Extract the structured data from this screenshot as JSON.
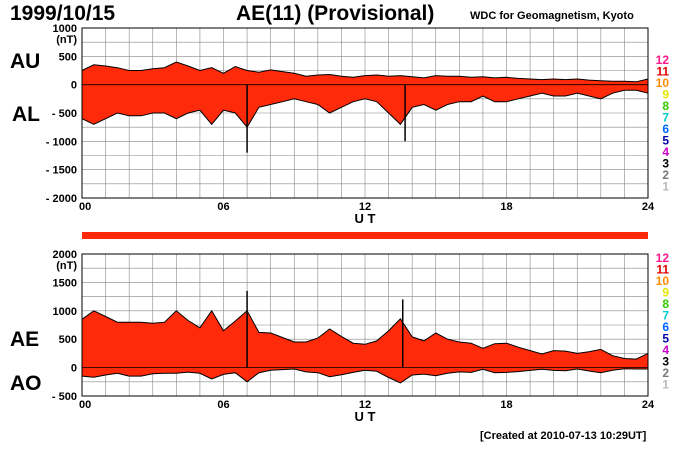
{
  "header": {
    "date": "1999/10/15",
    "title": "AE(11) (Provisional)",
    "credit": "WDC for Geomagnetism, Kyoto"
  },
  "footer": {
    "created": "[Created at 2010-07-13 10:29UT]"
  },
  "colors": {
    "fill": "#ff2a0a",
    "outline": "#000000",
    "grid": "#888888",
    "bar": "#ff2a0a"
  },
  "legend": {
    "items": [
      {
        "label": "12",
        "color": "#ff1a8c"
      },
      {
        "label": "11",
        "color": "#e00000"
      },
      {
        "label": "10",
        "color": "#ff8c00"
      },
      {
        "label": "9",
        "color": "#e6e600"
      },
      {
        "label": "8",
        "color": "#33cc00"
      },
      {
        "label": "7",
        "color": "#00cccc"
      },
      {
        "label": "6",
        "color": "#0066ff"
      },
      {
        "label": "5",
        "color": "#0000aa"
      },
      {
        "label": "4",
        "color": "#cc00cc"
      },
      {
        "label": "3",
        "color": "#000000"
      },
      {
        "label": "2",
        "color": "#777777"
      },
      {
        "label": "1",
        "color": "#bbbbbb"
      }
    ]
  },
  "chart_data": [
    {
      "type": "area",
      "name": "AU/AL",
      "upper_label": "AU",
      "lower_label": "AL",
      "ylabel_unit": "(nT)",
      "xlabel": "U T",
      "xlim": [
        0,
        24
      ],
      "ylim": [
        -2000,
        1000
      ],
      "x_ticks": [
        "00",
        "06",
        "12",
        "18",
        "24"
      ],
      "y_ticks": [
        {
          "value": 1000,
          "label": "1000"
        },
        {
          "value": 500,
          "label": "500"
        },
        {
          "value": 0,
          "label": "0"
        },
        {
          "value": -500,
          "label": "- 500"
        },
        {
          "value": -1000,
          "label": "- 1000"
        },
        {
          "value": -1500,
          "label": "- 1500"
        },
        {
          "value": -2000,
          "label": "- 2000"
        }
      ],
      "x": [
        0,
        0.5,
        1,
        1.5,
        2,
        2.5,
        3,
        3.5,
        4,
        4.5,
        5,
        5.5,
        6,
        6.5,
        7,
        7.5,
        8,
        8.5,
        9,
        9.5,
        10,
        10.5,
        11,
        11.5,
        12,
        12.5,
        13,
        13.5,
        14,
        14.5,
        15,
        15.5,
        16,
        16.5,
        17,
        17.5,
        18,
        18.5,
        19,
        19.5,
        20,
        20.5,
        21,
        21.5,
        22,
        22.5,
        23,
        23.5,
        24
      ],
      "series": [
        {
          "name": "AU",
          "values": [
            250,
            350,
            330,
            300,
            250,
            250,
            280,
            300,
            400,
            330,
            250,
            300,
            200,
            320,
            250,
            220,
            260,
            230,
            200,
            150,
            170,
            180,
            150,
            130,
            160,
            170,
            150,
            160,
            140,
            120,
            160,
            150,
            150,
            130,
            140,
            120,
            130,
            110,
            100,
            90,
            100,
            90,
            100,
            80,
            70,
            60,
            60,
            50,
            100
          ]
        },
        {
          "name": "AL",
          "values": [
            -600,
            -700,
            -600,
            -500,
            -550,
            -550,
            -500,
            -500,
            -600,
            -500,
            -450,
            -700,
            -450,
            -500,
            -750,
            -400,
            -350,
            -300,
            -250,
            -300,
            -350,
            -500,
            -400,
            -300,
            -250,
            -300,
            -500,
            -700,
            -400,
            -350,
            -450,
            -350,
            -300,
            -300,
            -200,
            -300,
            -300,
            -250,
            -200,
            -150,
            -200,
            -200,
            -150,
            -200,
            -250,
            -150,
            -100,
            -100,
            -150
          ]
        }
      ],
      "spikes": [
        {
          "x": 7.0,
          "value": -1200
        },
        {
          "x": 13.7,
          "value": -1000
        }
      ]
    },
    {
      "type": "area",
      "name": "AE/AO",
      "upper_label": "AE",
      "lower_label": "AO",
      "ylabel_unit": "(nT)",
      "xlabel": "U T",
      "xlim": [
        0,
        24
      ],
      "ylim": [
        -500,
        2000
      ],
      "x_ticks": [
        "00",
        "06",
        "12",
        "18",
        "24"
      ],
      "y_ticks": [
        {
          "value": 2000,
          "label": "2000"
        },
        {
          "value": 1500,
          "label": "1500"
        },
        {
          "value": 1000,
          "label": "1000"
        },
        {
          "value": 500,
          "label": "500"
        },
        {
          "value": 0,
          "label": "0"
        },
        {
          "value": -500,
          "label": "- 500"
        }
      ],
      "x": [
        0,
        0.5,
        1,
        1.5,
        2,
        2.5,
        3,
        3.5,
        4,
        4.5,
        5,
        5.5,
        6,
        6.5,
        7,
        7.5,
        8,
        8.5,
        9,
        9.5,
        10,
        10.5,
        11,
        11.5,
        12,
        12.5,
        13,
        13.5,
        14,
        14.5,
        15,
        15.5,
        16,
        16.5,
        17,
        17.5,
        18,
        18.5,
        19,
        19.5,
        20,
        20.5,
        21,
        21.5,
        22,
        22.5,
        23,
        23.5,
        24
      ],
      "series": [
        {
          "name": "AE",
          "values": [
            850,
            1000,
            900,
            800,
            800,
            800,
            780,
            800,
            1000,
            830,
            700,
            1000,
            650,
            820,
            1000,
            620,
            610,
            530,
            450,
            450,
            520,
            680,
            550,
            430,
            410,
            470,
            650,
            860,
            540,
            470,
            610,
            500,
            450,
            430,
            340,
            420,
            430,
            360,
            300,
            240,
            300,
            290,
            250,
            280,
            320,
            210,
            160,
            150,
            250
          ]
        },
        {
          "name": "AO",
          "values": [
            -150,
            -170,
            -130,
            -100,
            -150,
            -150,
            -110,
            -100,
            -100,
            -80,
            -100,
            -200,
            -120,
            -90,
            -250,
            -90,
            -45,
            -35,
            -25,
            -75,
            -90,
            -160,
            -125,
            -85,
            -45,
            -65,
            -175,
            -270,
            -130,
            -115,
            -145,
            -100,
            -75,
            -85,
            -30,
            -90,
            -85,
            -70,
            -50,
            -30,
            -50,
            -55,
            -25,
            -60,
            -90,
            -45,
            -20,
            -25,
            -25
          ]
        }
      ],
      "spikes": [
        {
          "x": 7.0,
          "value": 1350
        },
        {
          "x": 13.6,
          "value": 1200
        }
      ]
    }
  ]
}
